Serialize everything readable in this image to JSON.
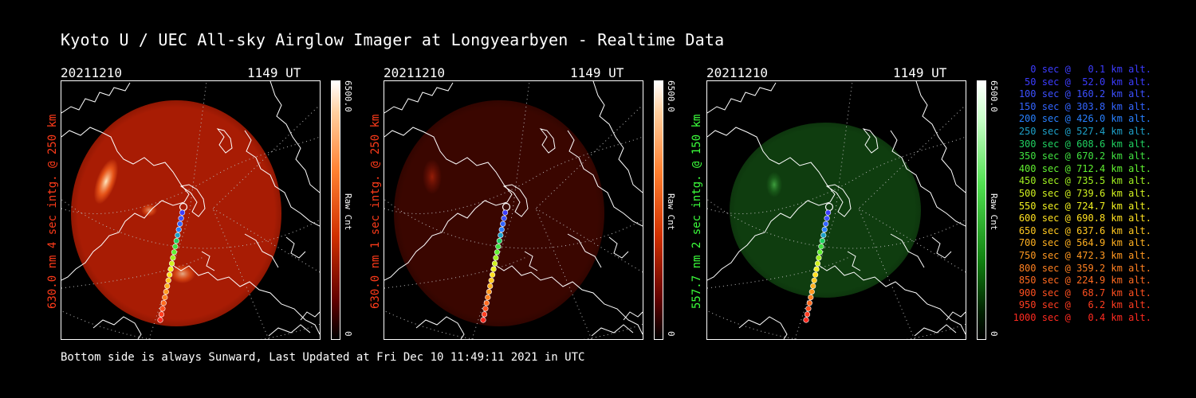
{
  "title": "Kyoto U / UEC All-sky Airglow Imager at Longyearbyen - Realtime Data",
  "footer": "Bottom side is always Sunward, Last Updated at Fri Dec 10 11:49:11 2021 in UTC",
  "panels": [
    {
      "date": "20211210",
      "time": "1149 UT",
      "label": "630.0 nm 4 sec intg. @ 250 km",
      "label_color": "#ff3b1a",
      "cbar_max": "6500.0",
      "cbar_min": "0",
      "cbar_title": "Raw Cnt",
      "theme": "red-bright"
    },
    {
      "date": "20211210",
      "time": "1149 UT",
      "label": "630.0 nm 1 sec intg. @ 250 km",
      "label_color": "#ff3b1a",
      "cbar_max": "6500.0",
      "cbar_min": "0",
      "cbar_title": "Raw Cnt",
      "theme": "red-dim"
    },
    {
      "date": "20211210",
      "time": "1149 UT",
      "label": "557.7 nm 2 sec intg. @ 150 km",
      "label_color": "#3cff3c",
      "cbar_max": "6500.0",
      "cbar_min": "0",
      "cbar_title": "Raw Cnt",
      "theme": "green"
    }
  ],
  "legend": [
    {
      "text": "0 sec @   0.1 km alt.",
      "color": "#3c3cff"
    },
    {
      "text": "50 sec @  52.0 km alt.",
      "color": "#3c3cff"
    },
    {
      "text": "100 sec @ 160.2 km alt.",
      "color": "#3c50ff"
    },
    {
      "text": "150 sec @ 303.8 km alt.",
      "color": "#3264ff"
    },
    {
      "text": "200 sec @ 426.0 km alt.",
      "color": "#2880ff"
    },
    {
      "text": "250 sec @ 527.4 km alt.",
      "color": "#1ea0c8"
    },
    {
      "text": "300 sec @ 608.6 km alt.",
      "color": "#20d060"
    },
    {
      "text": "350 sec @ 670.2 km alt.",
      "color": "#40e040"
    },
    {
      "text": "400 sec @ 712.4 km alt.",
      "color": "#60f030"
    },
    {
      "text": "450 sec @ 735.5 km alt.",
      "color": "#a0f020"
    },
    {
      "text": "500 sec @ 739.6 km alt.",
      "color": "#d0f020"
    },
    {
      "text": "550 sec @ 724.7 km alt.",
      "color": "#f0f020"
    },
    {
      "text": "600 sec @ 690.8 km alt.",
      "color": "#ffe020"
    },
    {
      "text": "650 sec @ 637.6 km alt.",
      "color": "#ffc820"
    },
    {
      "text": "700 sec @ 564.9 km alt.",
      "color": "#ffb020"
    },
    {
      "text": "750 sec @ 472.3 km alt.",
      "color": "#ff9820"
    },
    {
      "text": "800 sec @ 359.2 km alt.",
      "color": "#ff8020"
    },
    {
      "text": "850 sec @ 224.9 km alt.",
      "color": "#ff6a20"
    },
    {
      "text": "900 sec @  68.7 km alt.",
      "color": "#ff5020"
    },
    {
      "text": "950 sec @   6.2 km alt.",
      "color": "#ff3c20"
    },
    {
      "text": "1000 sec @   0.4 km alt.",
      "color": "#ff2a20"
    }
  ]
}
